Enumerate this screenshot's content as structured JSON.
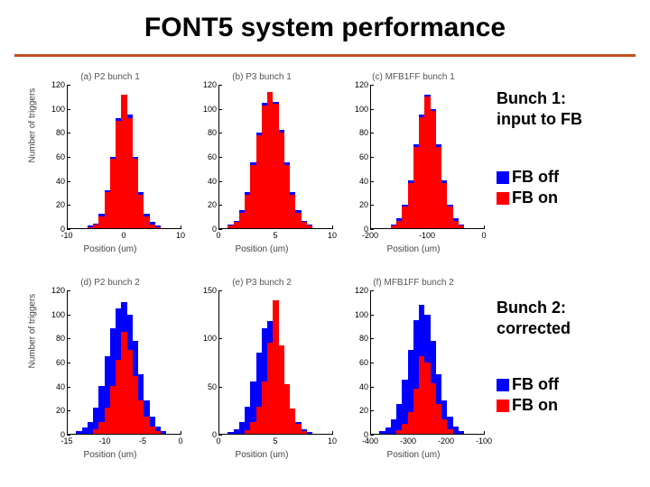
{
  "title": "FONT5 system performance",
  "colors": {
    "off": "#0000ff",
    "on": "#ff0000",
    "underline": "#c05020",
    "axis": "#000000",
    "text_axis": "#000000"
  },
  "xlabel": "Position (um)",
  "ylabel": "Number of triggers",
  "annotations": {
    "topA": "Bunch 1:\ninput to FB",
    "topB_off": "FB off",
    "topB_on": "FB on",
    "botA": "Bunch 2:\ncorrected",
    "botB_off": "FB off",
    "botB_on": "FB on"
  },
  "panels": [
    {
      "title": "(a) P2 bunch 1",
      "xlim": [
        -10,
        10
      ],
      "ylim": [
        0,
        120
      ],
      "xtick_step": 10,
      "ytick_step": 20,
      "binw": 1.0,
      "off": [
        [
          -6,
          2
        ],
        [
          -5,
          4
        ],
        [
          -4,
          12
        ],
        [
          -3,
          32
        ],
        [
          -2,
          60
        ],
        [
          -1,
          92
        ],
        [
          0,
          110
        ],
        [
          1,
          95
        ],
        [
          2,
          60
        ],
        [
          3,
          30
        ],
        [
          4,
          12
        ],
        [
          5,
          5
        ],
        [
          6,
          2
        ]
      ],
      "on": [
        [
          -6,
          1
        ],
        [
          -5,
          3
        ],
        [
          -4,
          10
        ],
        [
          -3,
          30
        ],
        [
          -2,
          58
        ],
        [
          -1,
          90
        ],
        [
          0,
          112
        ],
        [
          1,
          92
        ],
        [
          2,
          58
        ],
        [
          3,
          28
        ],
        [
          4,
          10
        ],
        [
          5,
          3
        ],
        [
          6,
          1
        ]
      ]
    },
    {
      "title": "(b) P3 bunch 1",
      "xlim": [
        0,
        10
      ],
      "ylim": [
        0,
        120
      ],
      "xtick_step": 5,
      "ytick_step": 20,
      "binw": 0.5,
      "off": [
        [
          1,
          3
        ],
        [
          1.5,
          6
        ],
        [
          2,
          15
        ],
        [
          2.5,
          30
        ],
        [
          3,
          55
        ],
        [
          3.5,
          80
        ],
        [
          4,
          105
        ],
        [
          4.5,
          112
        ],
        [
          5,
          106
        ],
        [
          5.5,
          82
        ],
        [
          6,
          55
        ],
        [
          6.5,
          30
        ],
        [
          7,
          15
        ],
        [
          7.5,
          6
        ],
        [
          8,
          3
        ]
      ],
      "on": [
        [
          1,
          2
        ],
        [
          1.5,
          5
        ],
        [
          2,
          13
        ],
        [
          2.5,
          28
        ],
        [
          3,
          53
        ],
        [
          3.5,
          78
        ],
        [
          4,
          103
        ],
        [
          4.5,
          114
        ],
        [
          5,
          104
        ],
        [
          5.5,
          80
        ],
        [
          6,
          53
        ],
        [
          6.5,
          28
        ],
        [
          7,
          13
        ],
        [
          7.5,
          5
        ],
        [
          8,
          2
        ]
      ]
    },
    {
      "title": "(c) MFB1FF bunch 1",
      "xlim": [
        -200,
        0
      ],
      "ylim": [
        0,
        120
      ],
      "xtick_step": 100,
      "ytick_step": 20,
      "binw": 10,
      "off": [
        [
          -160,
          3
        ],
        [
          -150,
          8
        ],
        [
          -140,
          20
        ],
        [
          -130,
          40
        ],
        [
          -120,
          70
        ],
        [
          -110,
          95
        ],
        [
          -100,
          112
        ],
        [
          -90,
          100
        ],
        [
          -80,
          70
        ],
        [
          -70,
          40
        ],
        [
          -60,
          20
        ],
        [
          -50,
          8
        ],
        [
          -40,
          3
        ]
      ],
      "on": [
        [
          -160,
          2
        ],
        [
          -150,
          6
        ],
        [
          -140,
          18
        ],
        [
          -130,
          38
        ],
        [
          -120,
          68
        ],
        [
          -110,
          93
        ],
        [
          -100,
          110
        ],
        [
          -90,
          98
        ],
        [
          -80,
          68
        ],
        [
          -70,
          38
        ],
        [
          -60,
          18
        ],
        [
          -50,
          6
        ],
        [
          -40,
          2
        ]
      ]
    },
    {
      "title": "(d) P2 bunch 2",
      "xlim": [
        -15,
        0
      ],
      "ylim": [
        0,
        120
      ],
      "xtick_step": 5,
      "ytick_step": 20,
      "binw": 0.75,
      "off": [
        [
          -13.5,
          2
        ],
        [
          -12.75,
          5
        ],
        [
          -12,
          10
        ],
        [
          -11.25,
          22
        ],
        [
          -10.5,
          40
        ],
        [
          -9.75,
          65
        ],
        [
          -9,
          88
        ],
        [
          -8.25,
          105
        ],
        [
          -7.5,
          110
        ],
        [
          -6.75,
          100
        ],
        [
          -6,
          78
        ],
        [
          -5.25,
          50
        ],
        [
          -4.5,
          28
        ],
        [
          -3.75,
          14
        ],
        [
          -3,
          6
        ],
        [
          -2.25,
          2
        ]
      ],
      "on": [
        [
          -11.25,
          4
        ],
        [
          -10.5,
          10
        ],
        [
          -9.75,
          22
        ],
        [
          -9,
          40
        ],
        [
          -8.25,
          62
        ],
        [
          -7.5,
          85
        ],
        [
          -6.75,
          70
        ],
        [
          -6,
          48
        ],
        [
          -5.25,
          28
        ],
        [
          -4.5,
          14
        ],
        [
          -3.75,
          6
        ],
        [
          -3,
          2
        ]
      ]
    },
    {
      "title": "(e) P3 bunch 2",
      "xlim": [
        0,
        10
      ],
      "ylim": [
        0,
        150
      ],
      "xtick_step": 5,
      "ytick_step": 50,
      "binw": 0.5,
      "off": [
        [
          1,
          2
        ],
        [
          1.5,
          5
        ],
        [
          2,
          12
        ],
        [
          2.5,
          28
        ],
        [
          3,
          55
        ],
        [
          3.5,
          85
        ],
        [
          4,
          110
        ],
        [
          4.5,
          118
        ],
        [
          5,
          108
        ],
        [
          5.5,
          82
        ],
        [
          6,
          52
        ],
        [
          6.5,
          26
        ],
        [
          7,
          12
        ],
        [
          7.5,
          5
        ],
        [
          8,
          2
        ]
      ],
      "on": [
        [
          2.5,
          4
        ],
        [
          3,
          12
        ],
        [
          3.5,
          28
        ],
        [
          4,
          55
        ],
        [
          4.5,
          95
        ],
        [
          5,
          140
        ],
        [
          5.5,
          92
        ],
        [
          6,
          52
        ],
        [
          6.5,
          26
        ],
        [
          7,
          10
        ],
        [
          7.5,
          3
        ]
      ]
    },
    {
      "title": "(f) MFB1FF bunch 2",
      "xlim": [
        -400,
        -100
      ],
      "ylim": [
        0,
        120
      ],
      "xtick_step": 100,
      "ytick_step": 20,
      "binw": 15,
      "off": [
        [
          -370,
          2
        ],
        [
          -355,
          5
        ],
        [
          -340,
          12
        ],
        [
          -325,
          25
        ],
        [
          -310,
          45
        ],
        [
          -295,
          70
        ],
        [
          -280,
          95
        ],
        [
          -265,
          108
        ],
        [
          -250,
          100
        ],
        [
          -235,
          78
        ],
        [
          -220,
          50
        ],
        [
          -205,
          28
        ],
        [
          -190,
          14
        ],
        [
          -175,
          6
        ],
        [
          -160,
          2
        ]
      ],
      "on": [
        [
          -325,
          3
        ],
        [
          -310,
          8
        ],
        [
          -295,
          18
        ],
        [
          -280,
          38
        ],
        [
          -265,
          65
        ],
        [
          -250,
          60
        ],
        [
          -235,
          42
        ],
        [
          -220,
          25
        ],
        [
          -205,
          12
        ],
        [
          -190,
          4
        ]
      ]
    }
  ]
}
